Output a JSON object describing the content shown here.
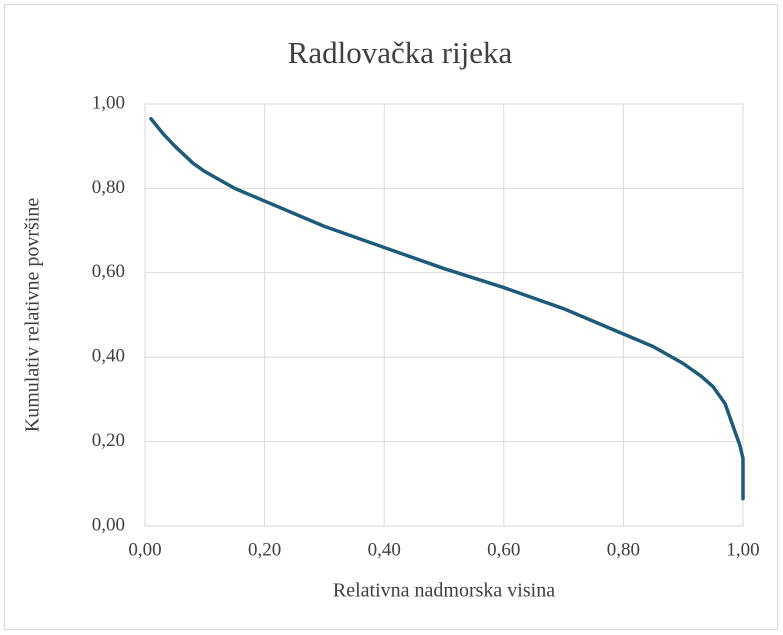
{
  "chart_data": {
    "type": "line",
    "title": "Radlovačka rijeka",
    "x_label": "Relativna nadmorska visina",
    "y_label": "Kumulativ relativne površine",
    "series": [
      {
        "name": "Radlovačka rijeka",
        "color": "#1d5b79",
        "x": [
          0.01,
          0.03,
          0.05,
          0.08,
          0.1,
          0.15,
          0.2,
          0.3,
          0.4,
          0.5,
          0.6,
          0.7,
          0.8,
          0.85,
          0.9,
          0.93,
          0.95,
          0.97,
          0.98,
          0.99,
          0.995,
          1.0,
          1.0
        ],
        "values": [
          0.965,
          0.93,
          0.9,
          0.86,
          0.84,
          0.8,
          0.77,
          0.71,
          0.66,
          0.61,
          0.565,
          0.515,
          0.455,
          0.425,
          0.385,
          0.355,
          0.33,
          0.29,
          0.25,
          0.21,
          0.19,
          0.16,
          0.065
        ]
      }
    ],
    "xlim": [
      0,
      1
    ],
    "ylim": [
      0,
      1
    ],
    "xticks": [
      {
        "value": 0,
        "label": "0,00"
      },
      {
        "value": 0.2,
        "label": "0,20"
      },
      {
        "value": 0.4,
        "label": "0,40"
      },
      {
        "value": 0.6,
        "label": "0,60"
      },
      {
        "value": 0.8,
        "label": "0,80"
      },
      {
        "value": 1,
        "label": "1,00"
      }
    ],
    "yticks": [
      {
        "value": 0,
        "label": "0,00"
      },
      {
        "value": 0.2,
        "label": "0,20"
      },
      {
        "value": 0.4,
        "label": "0,40"
      },
      {
        "value": 0.6,
        "label": "0,60"
      },
      {
        "value": 0.8,
        "label": "0,80"
      },
      {
        "value": 1,
        "label": "1,00"
      }
    ],
    "grid": true
  }
}
